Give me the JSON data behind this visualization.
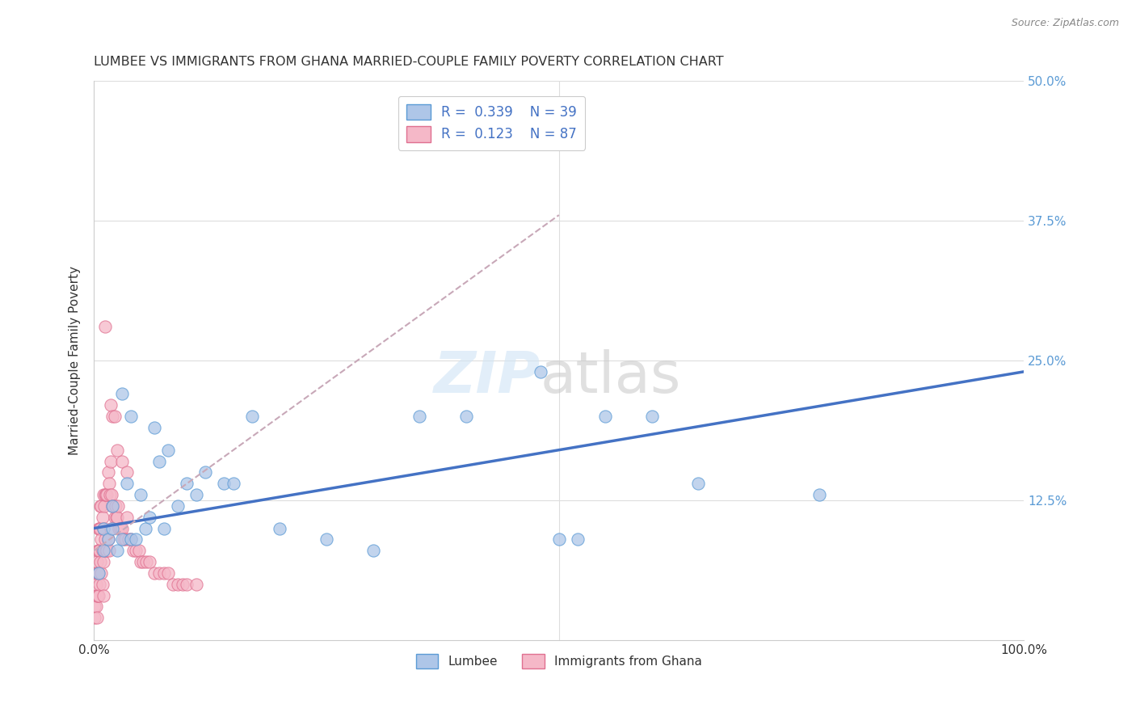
{
  "title": "LUMBEE VS IMMIGRANTS FROM GHANA MARRIED-COUPLE FAMILY POVERTY CORRELATION CHART",
  "source": "Source: ZipAtlas.com",
  "ylabel": "Married-Couple Family Poverty",
  "xlim": [
    0,
    1.0
  ],
  "ylim": [
    0,
    0.5
  ],
  "color_lumbee_fill": "#aec6e8",
  "color_lumbee_edge": "#5b9bd5",
  "color_ghana_fill": "#f5b8c8",
  "color_ghana_edge": "#e07090",
  "color_lumbee_line": "#4472c4",
  "color_ghana_line": "#c0a0b0",
  "legend_label1": "Lumbee",
  "legend_label2": "Immigrants from Ghana",
  "lumbee_x": [
    0.005,
    0.01,
    0.01,
    0.015,
    0.02,
    0.02,
    0.025,
    0.03,
    0.03,
    0.035,
    0.04,
    0.04,
    0.045,
    0.05,
    0.055,
    0.06,
    0.065,
    0.07,
    0.075,
    0.08,
    0.09,
    0.1,
    0.11,
    0.12,
    0.14,
    0.15,
    0.17,
    0.2,
    0.25,
    0.3,
    0.35,
    0.4,
    0.48,
    0.5,
    0.52,
    0.55,
    0.6,
    0.65,
    0.78
  ],
  "lumbee_y": [
    0.06,
    0.08,
    0.1,
    0.09,
    0.1,
    0.12,
    0.08,
    0.09,
    0.22,
    0.14,
    0.09,
    0.2,
    0.09,
    0.13,
    0.1,
    0.11,
    0.19,
    0.16,
    0.1,
    0.17,
    0.12,
    0.14,
    0.13,
    0.15,
    0.14,
    0.14,
    0.2,
    0.1,
    0.09,
    0.08,
    0.2,
    0.2,
    0.24,
    0.09,
    0.09,
    0.2,
    0.2,
    0.14,
    0.13
  ],
  "ghana_x": [
    0.001,
    0.001,
    0.001,
    0.002,
    0.002,
    0.002,
    0.003,
    0.003,
    0.003,
    0.003,
    0.004,
    0.004,
    0.004,
    0.005,
    0.005,
    0.005,
    0.005,
    0.006,
    0.006,
    0.006,
    0.007,
    0.007,
    0.007,
    0.008,
    0.008,
    0.008,
    0.009,
    0.009,
    0.009,
    0.01,
    0.01,
    0.01,
    0.01,
    0.011,
    0.011,
    0.012,
    0.012,
    0.013,
    0.013,
    0.014,
    0.014,
    0.015,
    0.015,
    0.016,
    0.016,
    0.017,
    0.018,
    0.018,
    0.019,
    0.02,
    0.021,
    0.022,
    0.023,
    0.024,
    0.025,
    0.026,
    0.027,
    0.028,
    0.03,
    0.032,
    0.034,
    0.035,
    0.037,
    0.04,
    0.042,
    0.045,
    0.048,
    0.05,
    0.053,
    0.056,
    0.06,
    0.065,
    0.07,
    0.075,
    0.08,
    0.085,
    0.09,
    0.095,
    0.1,
    0.11,
    0.012,
    0.018,
    0.02,
    0.022,
    0.025,
    0.03,
    0.035
  ],
  "ghana_y": [
    0.04,
    0.03,
    0.02,
    0.06,
    0.05,
    0.03,
    0.07,
    0.06,
    0.04,
    0.02,
    0.08,
    0.06,
    0.04,
    0.1,
    0.08,
    0.06,
    0.04,
    0.1,
    0.08,
    0.05,
    0.12,
    0.1,
    0.07,
    0.12,
    0.09,
    0.06,
    0.11,
    0.08,
    0.05,
    0.13,
    0.1,
    0.07,
    0.04,
    0.12,
    0.08,
    0.13,
    0.09,
    0.13,
    0.08,
    0.13,
    0.08,
    0.15,
    0.09,
    0.14,
    0.08,
    0.13,
    0.16,
    0.1,
    0.13,
    0.12,
    0.12,
    0.11,
    0.12,
    0.11,
    0.11,
    0.12,
    0.1,
    0.1,
    0.1,
    0.09,
    0.09,
    0.11,
    0.09,
    0.09,
    0.08,
    0.08,
    0.08,
    0.07,
    0.07,
    0.07,
    0.07,
    0.06,
    0.06,
    0.06,
    0.06,
    0.05,
    0.05,
    0.05,
    0.05,
    0.05,
    0.28,
    0.21,
    0.2,
    0.2,
    0.17,
    0.16,
    0.15
  ]
}
